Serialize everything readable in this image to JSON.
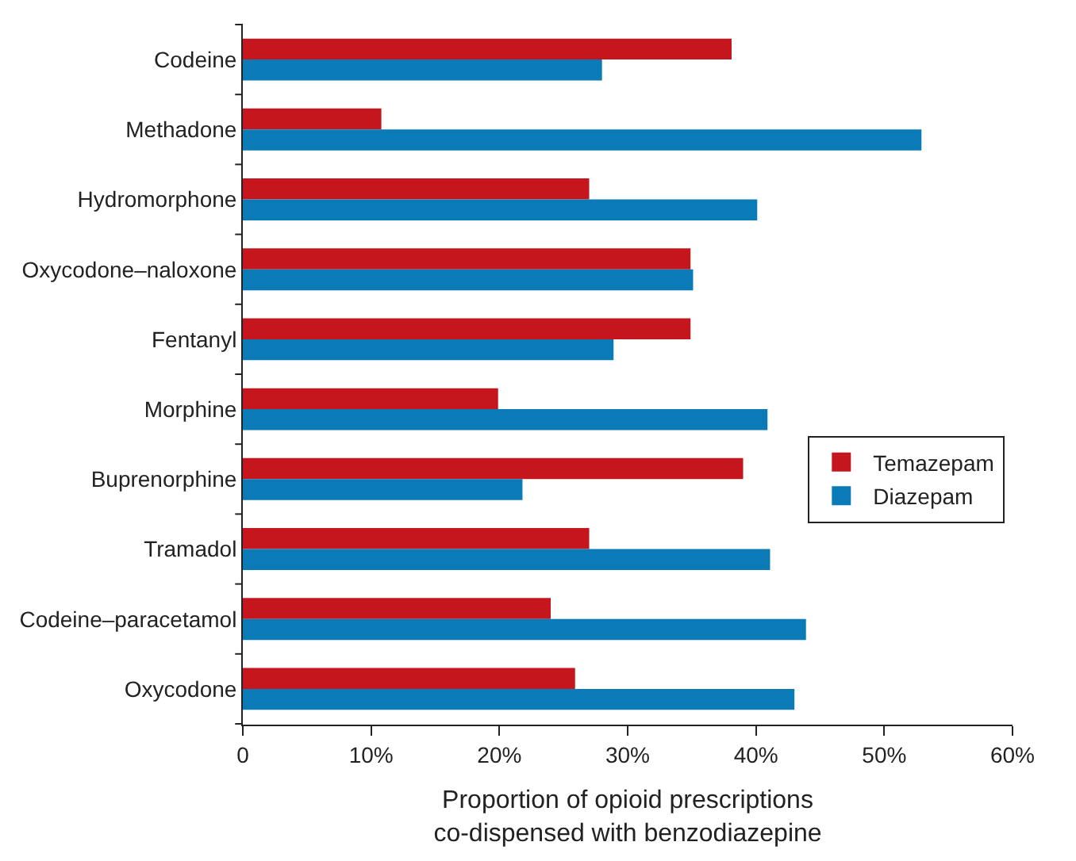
{
  "chart_data": {
    "type": "bar",
    "orientation": "horizontal",
    "xlabel": "Proportion of opioid prescriptions\nco-dispensed with benzodiazepine",
    "categories": [
      "Codeine",
      "Methadone",
      "Hydromorphone",
      "Oxycodone–naloxone",
      "Fentanyl",
      "Morphine",
      "Buprenorphine",
      "Tramadol",
      "Codeine–paracetamol",
      "Oxycodone"
    ],
    "series": [
      {
        "name": "Temazepam",
        "color": "#c4161c",
        "values": [
          38.1,
          10.8,
          27.0,
          34.9,
          34.9,
          19.9,
          39.0,
          27.0,
          24.0,
          25.9
        ]
      },
      {
        "name": "Diazepam",
        "color": "#0a7bb6",
        "values": [
          28.0,
          52.9,
          40.1,
          35.1,
          28.9,
          40.9,
          21.8,
          41.1,
          43.9,
          43.0
        ]
      }
    ],
    "xlim": [
      0,
      60
    ],
    "xticks": [
      0,
      {
        "value": 10,
        "label": "10%"
      },
      {
        "value": 20,
        "label": "20%"
      },
      {
        "value": 30,
        "label": "30%"
      },
      {
        "value": 40,
        "label": "40%"
      },
      {
        "value": 50,
        "label": "50%"
      },
      {
        "value": 60,
        "label": "60%"
      }
    ],
    "legend": "right"
  }
}
